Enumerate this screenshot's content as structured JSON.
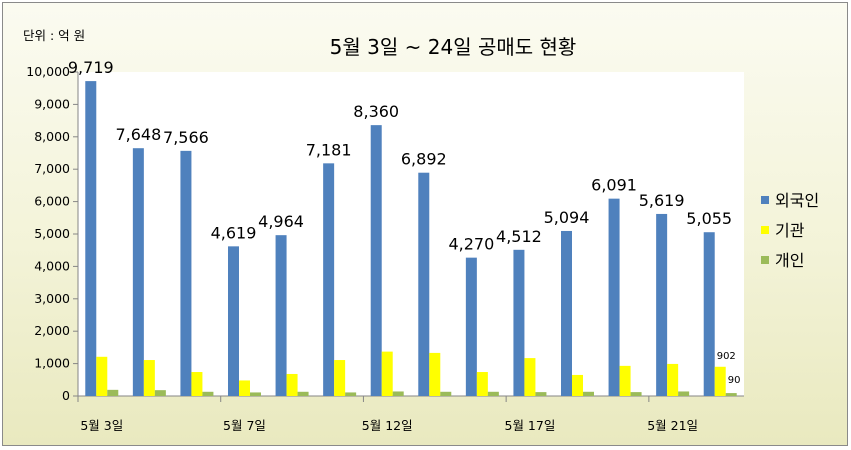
{
  "chart_data": {
    "type": "bar",
    "title": "5월 3일 ~ 24일  공매도 현황",
    "unit_label": "단위 : 억 원",
    "ylim": [
      0,
      10000
    ],
    "yticks": [
      "0",
      "1,000",
      "2,000",
      "3,000",
      "4,000",
      "5,000",
      "6,000",
      "7,000",
      "8,000",
      "9,000",
      "10,000"
    ],
    "x_tick_labels": [
      {
        "label": "5월 3일",
        "index": 0
      },
      {
        "label": "5월 7일",
        "index": 3
      },
      {
        "label": "5월 12일",
        "index": 6
      },
      {
        "label": "5월 17일",
        "index": 9
      },
      {
        "label": "5월 21일",
        "index": 12
      }
    ],
    "legend_position": "right",
    "grid": false,
    "series": [
      {
        "name": "외국인",
        "color": "#4f81bd",
        "values": [
          9719,
          7648,
          7566,
          4619,
          4964,
          7181,
          8360,
          6892,
          4270,
          4512,
          5094,
          6091,
          5619,
          5055
        ],
        "data_labels": [
          "9,719",
          "7,648",
          "7,566",
          "4,619",
          "4,964",
          "7,181",
          "8,360",
          "6,892",
          "4,270",
          "4,512",
          "5,094",
          "6,091",
          "5,619",
          "5,055"
        ]
      },
      {
        "name": "기관",
        "color": "#ffff00",
        "values": [
          1210,
          1110,
          740,
          480,
          680,
          1110,
          1370,
          1330,
          740,
          1170,
          650,
          930,
          990,
          902
        ],
        "data_labels": [
          "",
          "",
          "",
          "",
          "",
          "",
          "",
          "",
          "",
          "",
          "",
          "",
          "",
          "902"
        ]
      },
      {
        "name": "개인",
        "color": "#9bbb59",
        "values": [
          190,
          180,
          130,
          110,
          130,
          110,
          140,
          130,
          130,
          120,
          130,
          120,
          140,
          90
        ],
        "data_labels": [
          "",
          "",
          "",
          "",
          "",
          "",
          "",
          "",
          "",
          "",
          "",
          "",
          "",
          "90"
        ]
      }
    ]
  }
}
